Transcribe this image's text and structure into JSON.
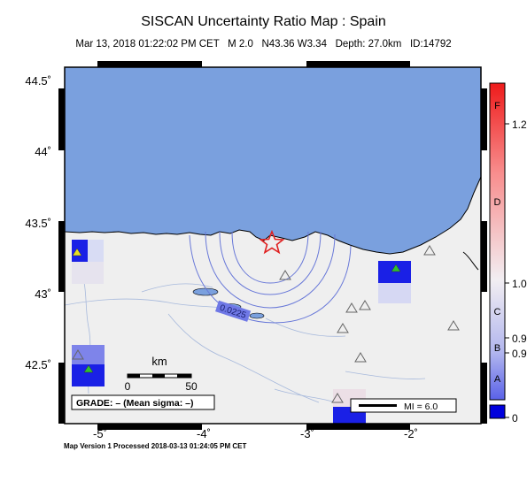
{
  "header": {
    "title": "SISCAN Uncertainty Ratio Map : Spain",
    "subtitle": "Mar 13, 2018 01:22:02 PM CET   M 2.0   N43.36 W3.34   Depth: 27.0km   ID:14792"
  },
  "map": {
    "lat_labels": [
      "44.5˚",
      "44˚",
      "43.5˚",
      "43˚",
      "42.5˚"
    ],
    "lon_labels": [
      "-5˚",
      "-4˚",
      "-3˚",
      "-2˚"
    ],
    "contour_label": "0.0225",
    "scale_bar": {
      "title": "km",
      "min": "0",
      "max": "50"
    },
    "grade_text": "GRADE: – (Mean sigma: –)",
    "mi_legend": "MI = 6.0",
    "colors": {
      "sea": "#7aa0de",
      "land": "#efefef",
      "contour": "#6878d8",
      "station_high": "#2030e0"
    }
  },
  "colorbar": {
    "grades": [
      "F",
      "D",
      "C",
      "B",
      "A"
    ],
    "values": [
      "1.2",
      "1.0",
      "0.9",
      "0.9",
      "0"
    ]
  },
  "footer": {
    "text": "Map Version 1 Processed 2018-03-13 01:24:05 PM CET"
  }
}
